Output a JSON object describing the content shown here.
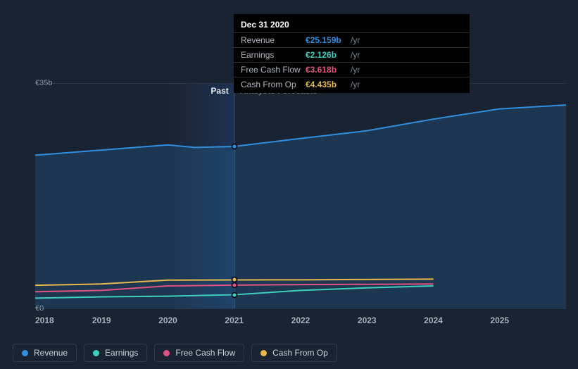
{
  "chart": {
    "type": "line",
    "background_color": "#1a2332",
    "grid_color": "#2a3646",
    "text_color": "#8a939f",
    "currency_prefix": "€",
    "ylim": [
      0,
      35
    ],
    "y_ticks": [
      {
        "v": 0,
        "label": "€0"
      },
      {
        "v": 35,
        "label": "€35b"
      }
    ],
    "x_years": [
      2018,
      2019,
      2020,
      2021,
      2022,
      2023,
      2024,
      2025,
      2026
    ],
    "x_tick_labels": [
      "2018",
      "2019",
      "2020",
      "2021",
      "2022",
      "2023",
      "2024",
      "2025"
    ],
    "divider_x": 2021,
    "zones": {
      "past_label": "Past",
      "forecast_label": "Analysts Forecasts",
      "past_gradient_from": 2020,
      "past_gradient_to": 2021
    },
    "series": [
      {
        "key": "revenue",
        "label": "Revenue",
        "color": "#2f8fe0",
        "fill": true,
        "fill_color": "rgba(47,143,224,0.18)",
        "width": 2,
        "data": [
          [
            2018,
            23.8
          ],
          [
            2019,
            24.6
          ],
          [
            2020,
            25.4
          ],
          [
            2020.4,
            25.0
          ],
          [
            2021,
            25.159
          ],
          [
            2022,
            26.4
          ],
          [
            2023,
            27.6
          ],
          [
            2024,
            29.4
          ],
          [
            2025,
            31.0
          ],
          [
            2026,
            31.6
          ]
        ]
      },
      {
        "key": "cash_from_op",
        "label": "Cash From Op",
        "color": "#e8b94a",
        "fill": false,
        "width": 2,
        "data": [
          [
            2018,
            3.6
          ],
          [
            2019,
            3.8
          ],
          [
            2020,
            4.4
          ],
          [
            2021,
            4.435
          ],
          [
            2022,
            4.45
          ],
          [
            2023,
            4.5
          ],
          [
            2024,
            4.55
          ]
        ]
      },
      {
        "key": "fcf",
        "label": "Free Cash Flow",
        "color": "#e0527f",
        "fill": false,
        "width": 2,
        "data": [
          [
            2018,
            2.6
          ],
          [
            2019,
            2.8
          ],
          [
            2020,
            3.5
          ],
          [
            2021,
            3.618
          ],
          [
            2022,
            3.7
          ],
          [
            2023,
            3.75
          ],
          [
            2024,
            3.8
          ]
        ]
      },
      {
        "key": "earnings",
        "label": "Earnings",
        "color": "#3fd0c0",
        "fill": false,
        "width": 2,
        "data": [
          [
            2018,
            1.6
          ],
          [
            2019,
            1.8
          ],
          [
            2020,
            1.9
          ],
          [
            2021,
            2.126
          ],
          [
            2022,
            2.8
          ],
          [
            2023,
            3.2
          ],
          [
            2024,
            3.5
          ]
        ]
      }
    ],
    "hover_x": 2021,
    "hover_markers": [
      {
        "series": "revenue",
        "y": 25.159
      },
      {
        "series": "cash_from_op",
        "y": 4.435
      },
      {
        "series": "fcf",
        "y": 3.618
      },
      {
        "series": "earnings",
        "y": 2.126
      }
    ]
  },
  "tooltip": {
    "title": "Dec 31 2020",
    "unit": "/yr",
    "rows": [
      {
        "label": "Revenue",
        "value": "€25.159b",
        "color": "#2f8fe0"
      },
      {
        "label": "Earnings",
        "value": "€2.126b",
        "color": "#3fd0c0"
      },
      {
        "label": "Free Cash Flow",
        "value": "€3.618b",
        "color": "#e0527f"
      },
      {
        "label": "Cash From Op",
        "value": "€4.435b",
        "color": "#e8b94a"
      }
    ]
  },
  "legend": [
    {
      "label": "Revenue",
      "color": "#2f8fe0"
    },
    {
      "label": "Earnings",
      "color": "#3fd0c0"
    },
    {
      "label": "Free Cash Flow",
      "color": "#e0527f"
    },
    {
      "label": "Cash From Op",
      "color": "#e8b94a"
    }
  ]
}
